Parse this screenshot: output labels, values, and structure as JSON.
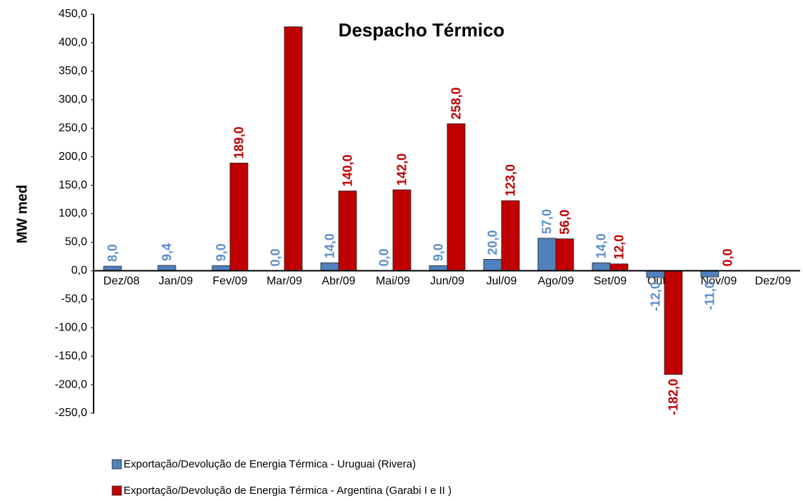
{
  "chart_data": {
    "type": "bar",
    "title": "Despacho Térmico",
    "y_label": "MW med",
    "categories": [
      "Dez/08",
      "Jan/09",
      "Fev/09",
      "Mar/09",
      "Abr/09",
      "Mai/09",
      "Jun/09",
      "Jul/09",
      "Ago/09",
      "Set/09",
      "Out/09",
      "Nov/09",
      "Dez/09"
    ],
    "series": [
      {
        "name": "Exportação/Devolução de Energia Térmica - Uruguai (Rivera)",
        "color": "#4f81bd",
        "label_color": "#5b8fc8",
        "values": [
          8.0,
          9.4,
          9.0,
          0.0,
          14.0,
          0.0,
          9.0,
          20.0,
          57.0,
          14.0,
          -12.0,
          -11.0,
          null
        ],
        "value_labels": [
          "8,0",
          "9,4",
          "9,0",
          "0,0",
          "14,0",
          "0,0",
          "9,0",
          "20,0",
          "57,0",
          "14,0",
          "-12,0",
          "-11,0",
          null
        ]
      },
      {
        "name": "Exportação/Devolução de Energia Térmica - Argentina (Garabi I e II )",
        "color": "#c00000",
        "label_color": "#c00000",
        "values": [
          null,
          null,
          189.0,
          428.0,
          140.0,
          142.0,
          258.0,
          123.0,
          56.0,
          12.0,
          -182.0,
          0.0,
          null
        ],
        "value_labels": [
          null,
          null,
          "189,0",
          "428,0",
          "140,0",
          "142,0",
          "258,0",
          "123,0",
          "56,0",
          "12,0",
          "-182,0",
          "0,0",
          null
        ]
      }
    ],
    "ylim": [
      -250,
      450
    ],
    "yticks": [
      {
        "value": -250,
        "label": "-250,0"
      },
      {
        "value": -200,
        "label": "-200,0"
      },
      {
        "value": -150,
        "label": "-150,0"
      },
      {
        "value": -100,
        "label": "-100,0"
      },
      {
        "value": -50,
        "label": "-50,0"
      },
      {
        "value": 0,
        "label": "0,0"
      },
      {
        "value": 50,
        "label": "50,0"
      },
      {
        "value": 100,
        "label": "100,0"
      },
      {
        "value": 150,
        "label": "150,0"
      },
      {
        "value": 200,
        "label": "200,0"
      },
      {
        "value": 250,
        "label": "250,0"
      },
      {
        "value": 300,
        "label": "300,0"
      },
      {
        "value": 350,
        "label": "350,0"
      },
      {
        "value": 400,
        "label": "400,0"
      },
      {
        "value": 450,
        "label": "450,0"
      }
    ],
    "grid": false
  }
}
